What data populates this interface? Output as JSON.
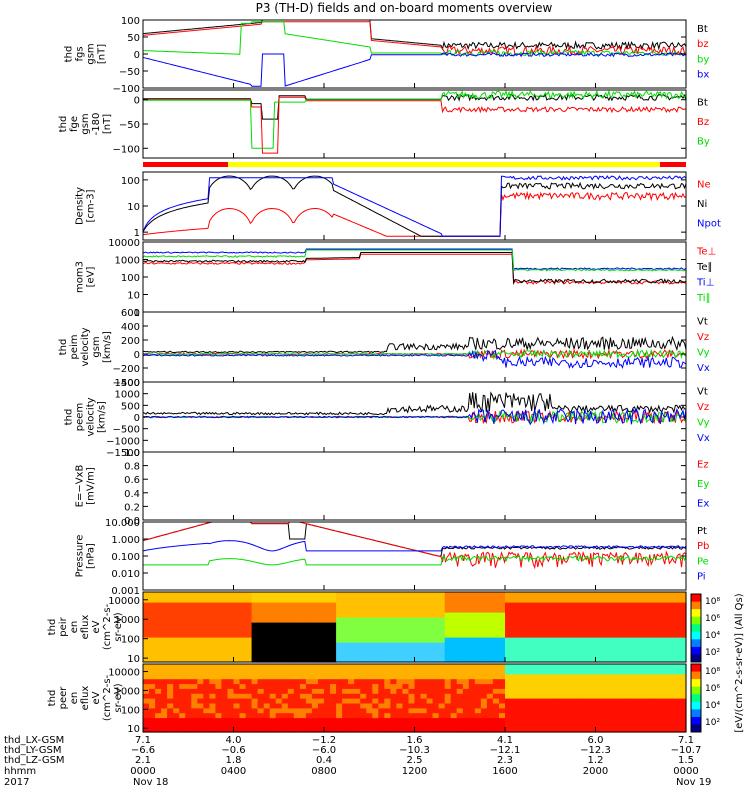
{
  "title": "P3 (TH-D) fields and on-board moments overview",
  "colors": {
    "black": "#000000",
    "red": "#ff0000",
    "green": "#00dd00",
    "blue": "#0000ff",
    "yellow": "#ffff00"
  },
  "chart_data": [
    {
      "type": "line",
      "id": "fgs",
      "ylabel_lines": [
        "thd",
        "fgs",
        "gsm",
        "[nT]"
      ],
      "ylim": [
        -100,
        100
      ],
      "ticks": [
        "100",
        "50",
        "0",
        "−50",
        "−100"
      ],
      "legend": [
        {
          "name": "Bt",
          "color": "black"
        },
        {
          "name": "bz",
          "color": "red"
        },
        {
          "name": "by",
          "color": "green"
        },
        {
          "name": "bx",
          "color": "blue"
        }
      ]
    },
    {
      "type": "line",
      "id": "fge",
      "ylabel_lines": [
        "thd",
        "fge",
        "gsm",
        "-180",
        "[nT]"
      ],
      "ylim": [
        -120,
        20
      ],
      "ticks": [
        "0",
        "−50",
        "−100"
      ],
      "legend": [
        {
          "name": "Bt",
          "color": "black"
        },
        {
          "name": "Bz",
          "color": "red"
        },
        {
          "name": "By",
          "color": "green"
        }
      ]
    },
    {
      "type": "line",
      "id": "density",
      "ylabel_lines": [
        "Density",
        "[cm-3]"
      ],
      "scale": "log",
      "ylim": [
        0.5,
        200
      ],
      "ticks": [
        "100",
        "10",
        "1"
      ],
      "legend": [
        {
          "name": "Ne",
          "color": "red"
        },
        {
          "name": "Ni",
          "color": "black"
        },
        {
          "name": "Npot",
          "color": "blue"
        }
      ]
    },
    {
      "type": "line",
      "id": "temp",
      "ylabel_lines": [
        "mom3",
        "[eV]"
      ],
      "scale": "log",
      "ylim": [
        1,
        10000
      ],
      "ticks": [
        "10000",
        "1000",
        "100",
        "10",
        "1"
      ],
      "legend": [
        {
          "name": "Te⊥",
          "color": "red"
        },
        {
          "name": "Te∥",
          "color": "black"
        },
        {
          "name": "Ti⊥",
          "color": "blue"
        },
        {
          "name": "Ti∥",
          "color": "green"
        }
      ]
    },
    {
      "type": "line",
      "id": "vi",
      "ylabel_lines": [
        "thd",
        "peim",
        "velocity",
        "gsm",
        "[km/s]"
      ],
      "ylim": [
        -400,
        600
      ],
      "ticks": [
        "600",
        "400",
        "200",
        "0",
        "−200",
        "−400"
      ],
      "legend": [
        {
          "name": "Vt",
          "color": "black"
        },
        {
          "name": "Vz",
          "color": "red"
        },
        {
          "name": "Vy",
          "color": "green"
        },
        {
          "name": "Vx",
          "color": "blue"
        }
      ]
    },
    {
      "type": "line",
      "id": "ve",
      "ylabel_lines": [
        "thd",
        "peem",
        "velocity",
        "[km/s]"
      ],
      "ylim": [
        -1500,
        1500
      ],
      "ticks": [
        "1500",
        "1000",
        "500",
        "0",
        "−500",
        "−1000",
        "−1500"
      ],
      "legend": [
        {
          "name": "Vt",
          "color": "black"
        },
        {
          "name": "Vz",
          "color": "red"
        },
        {
          "name": "Vy",
          "color": "green"
        },
        {
          "name": "Vx",
          "color": "blue"
        }
      ]
    },
    {
      "type": "line",
      "id": "efield",
      "ylabel_lines": [
        "E=−VxB",
        "[mV/m]"
      ],
      "ylim": [
        0,
        1
      ],
      "ticks": [
        "1.0",
        "0.8",
        "0.6",
        "0.4",
        "0.2",
        "0.0"
      ],
      "legend": [
        {
          "name": "Ez",
          "color": "red"
        },
        {
          "name": "Ey",
          "color": "green"
        },
        {
          "name": "Ex",
          "color": "blue"
        }
      ]
    },
    {
      "type": "line",
      "id": "pressure",
      "ylabel_lines": [
        "Pressure",
        "[nPa]"
      ],
      "scale": "log",
      "ylim": [
        0.001,
        10
      ],
      "ticks": [
        "10.000",
        "1.000",
        "0.100",
        "0.010",
        "0.001"
      ],
      "legend": [
        {
          "name": "Pt",
          "color": "black"
        },
        {
          "name": "Pb",
          "color": "red"
        },
        {
          "name": "Pe",
          "color": "green"
        },
        {
          "name": "Pi",
          "color": "blue"
        }
      ]
    },
    {
      "type": "heatmap",
      "id": "ion_spec",
      "ylabel_lines": [
        "thd",
        "peir",
        "en",
        "eflux",
        "eV",
        "(cm^2-s-",
        "sr-eV)"
      ],
      "scale": "log",
      "ticks": [
        "10000",
        "1000",
        "100",
        "10"
      ]
    },
    {
      "type": "heatmap",
      "id": "ele_spec",
      "ylabel_lines": [
        "thd",
        "peer",
        "en",
        "eflux",
        "eV",
        "(cm^2-s-",
        "sr-eV)"
      ],
      "scale": "log",
      "ticks": [
        "10000",
        "1000",
        "100",
        "10"
      ]
    }
  ],
  "colorbar": {
    "label": "[eV/(cm^2-s-sr-eV)] (All Qs)",
    "top_ticks": [
      "10⁸",
      "10⁶",
      "10⁴",
      "10²"
    ],
    "bottom_ticks": [
      "10⁸",
      "10⁶",
      "10⁴",
      "10²"
    ]
  },
  "x_axis": {
    "row_labels": [
      "thd_LX-GSM",
      "thd_LY-GSM",
      "thd_LZ-GSM",
      "hhmm",
      "2017"
    ],
    "columns": [
      {
        "lx": "7.1",
        "ly": "−6.6",
        "lz": "2.1",
        "hhmm": "0000",
        "date": "Nov 18"
      },
      {
        "lx": "4.0",
        "ly": "−0.6",
        "lz": "1.8",
        "hhmm": "0400",
        "date": ""
      },
      {
        "lx": "−1.2",
        "ly": "−6.0",
        "lz": "0.4",
        "hhmm": "0800",
        "date": ""
      },
      {
        "lx": "1.6",
        "ly": "−10.3",
        "lz": "2.5",
        "hhmm": "1200",
        "date": ""
      },
      {
        "lx": "4.1",
        "ly": "−12.1",
        "lz": "2.3",
        "hhmm": "1600",
        "date": ""
      },
      {
        "lx": "6.0",
        "ly": "−12.3",
        "lz": "1.2",
        "hhmm": "2000",
        "date": ""
      },
      {
        "lx": "7.1",
        "ly": "−10.7",
        "lz": "1.5",
        "hhmm": "0000",
        "date": "Nov 19"
      }
    ]
  }
}
